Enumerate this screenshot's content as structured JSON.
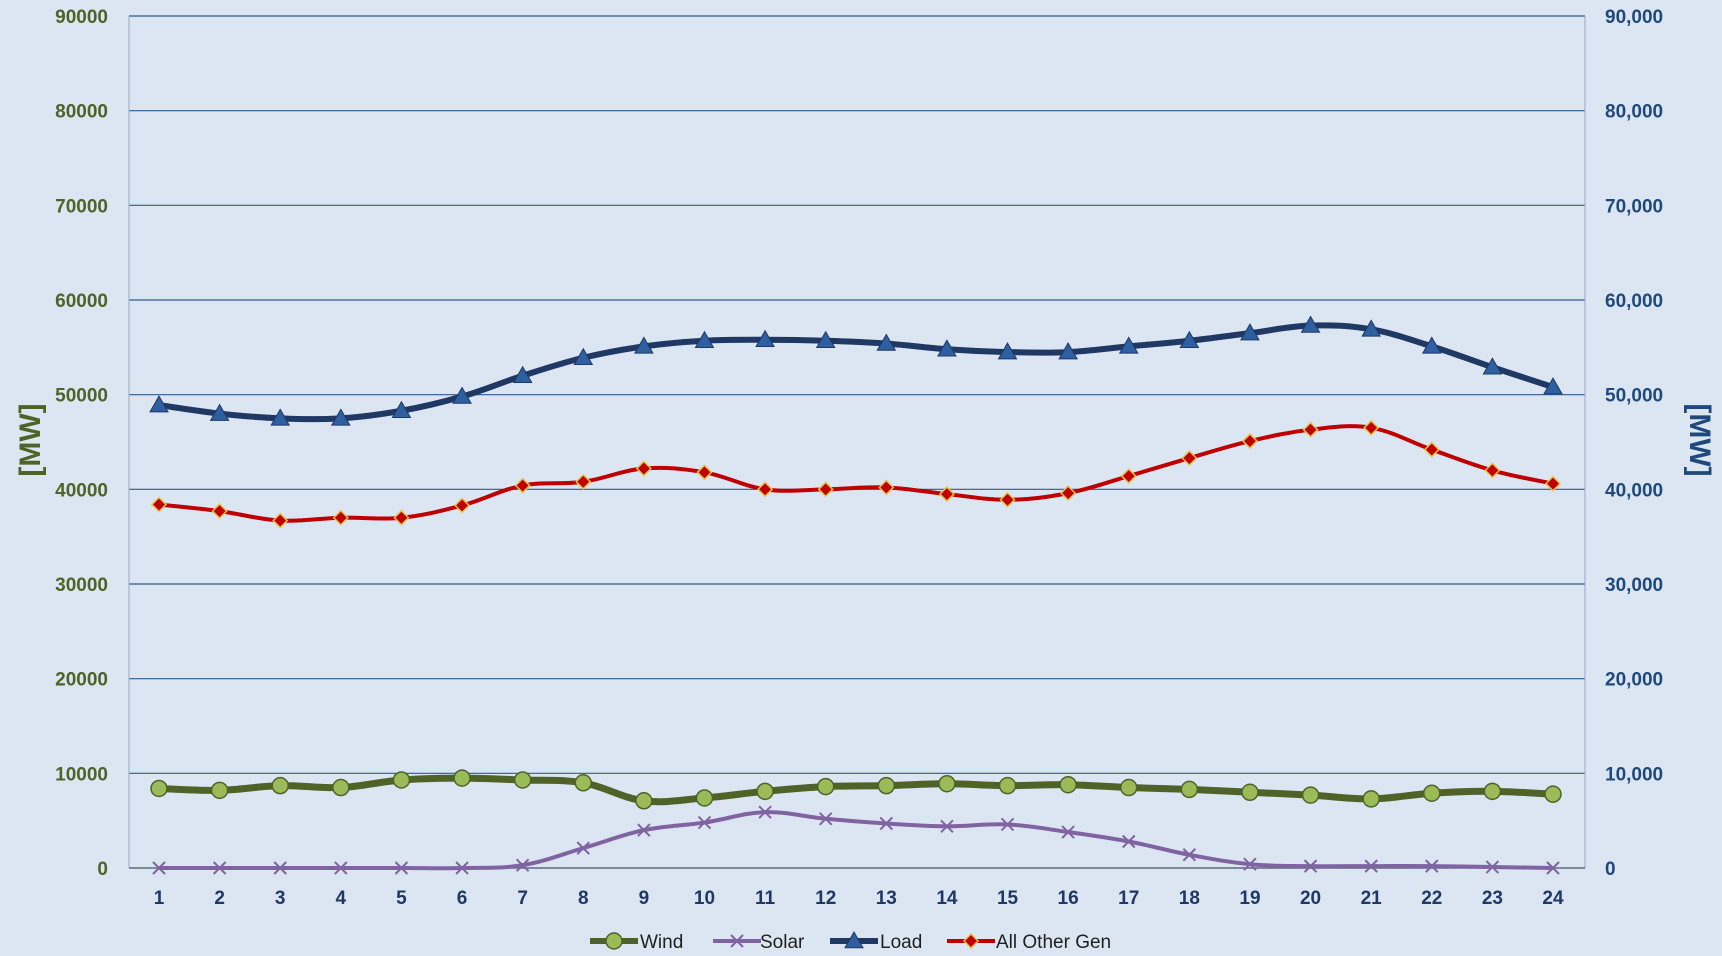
{
  "chart_data": {
    "type": "line",
    "x": [
      1,
      2,
      3,
      4,
      5,
      6,
      7,
      8,
      9,
      10,
      11,
      12,
      13,
      14,
      15,
      16,
      17,
      18,
      19,
      20,
      21,
      22,
      23,
      24
    ],
    "x_tick_labels": [
      "1",
      "2",
      "3",
      "4",
      "5",
      "6",
      "7",
      "8",
      "9",
      "10",
      "11",
      "12",
      "13",
      "14",
      "15",
      "16",
      "17",
      "18",
      "19",
      "20",
      "21",
      "22",
      "23",
      "24"
    ],
    "ylabel_left": "[MW]",
    "ylabel_right": "[MW]",
    "ylim": [
      0,
      90000
    ],
    "y_left_ticks": [
      "0",
      "10000",
      "20000",
      "30000",
      "40000",
      "50000",
      "60000",
      "70000",
      "80000",
      "90000"
    ],
    "y_right_ticks": [
      "0",
      "10,000",
      "20,000",
      "30,000",
      "40,000",
      "50,000",
      "60,000",
      "70,000",
      "80,000",
      "90,000"
    ],
    "y_tick_values": [
      0,
      10000,
      20000,
      30000,
      40000,
      50000,
      60000,
      70000,
      80000,
      90000
    ],
    "grid": true,
    "legend_position": "bottom",
    "series": [
      {
        "name": "Wind",
        "axis": "left",
        "color": "#4f6228",
        "marker": "circle",
        "marker_color": "#9bbb59",
        "values": [
          8400,
          8200,
          8700,
          8500,
          9300,
          9500,
          9300,
          9000,
          7100,
          7400,
          8100,
          8600,
          8700,
          8900,
          8700,
          8800,
          8500,
          8300,
          8000,
          7700,
          7300,
          7900,
          8100,
          7800
        ]
      },
      {
        "name": "Solar",
        "axis": "left",
        "color": "#8064a2",
        "marker": "x",
        "marker_color": "#8064a2",
        "values": [
          0,
          0,
          0,
          0,
          0,
          0,
          300,
          2100,
          4000,
          4800,
          5900,
          5200,
          4700,
          4400,
          4600,
          3800,
          2800,
          1400,
          400,
          200,
          200,
          200,
          100,
          0
        ]
      },
      {
        "name": "Load",
        "axis": "right",
        "color": "#1f3864",
        "marker": "triangle",
        "marker_color": "#2e5fa0",
        "values": [
          48900,
          48000,
          47500,
          47500,
          48300,
          49800,
          52000,
          53900,
          55100,
          55700,
          55800,
          55700,
          55400,
          54800,
          54500,
          54500,
          55100,
          55700,
          56500,
          57300,
          56900,
          55100,
          52900,
          50800
        ]
      },
      {
        "name": "All Other Gen",
        "axis": "right",
        "color": "#c00000",
        "marker": "diamond",
        "marker_color": "#c00000",
        "values": [
          38400,
          37700,
          36700,
          37000,
          37000,
          38300,
          40400,
          40800,
          42200,
          41800,
          40000,
          40000,
          40200,
          39500,
          38900,
          39600,
          41400,
          43300,
          45100,
          46300,
          46500,
          44200,
          42000,
          40600
        ]
      }
    ]
  }
}
